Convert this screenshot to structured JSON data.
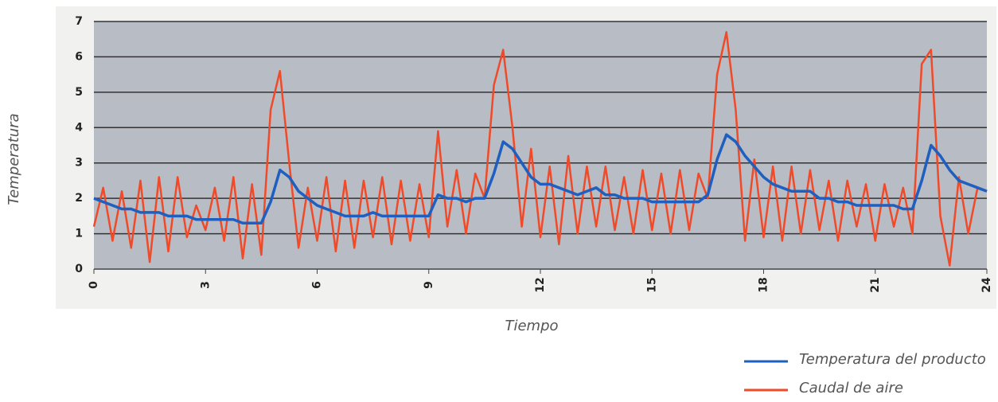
{
  "chart_data": {
    "type": "line",
    "x_label": "Tiempo",
    "y_label": "Temperatura",
    "x": [
      0,
      0.25,
      0.5,
      0.75,
      1,
      1.25,
      1.5,
      1.75,
      2,
      2.25,
      2.5,
      2.75,
      3,
      3.25,
      3.5,
      3.75,
      4,
      4.25,
      4.5,
      4.75,
      5,
      5.25,
      5.5,
      5.75,
      6,
      6.25,
      6.5,
      6.75,
      7,
      7.25,
      7.5,
      7.75,
      8,
      8.25,
      8.5,
      8.75,
      9,
      9.25,
      9.5,
      9.75,
      10,
      10.25,
      10.5,
      10.75,
      11,
      11.25,
      11.5,
      11.75,
      12,
      12.25,
      12.5,
      12.75,
      13,
      13.25,
      13.5,
      13.75,
      14,
      14.25,
      14.5,
      14.75,
      15,
      15.25,
      15.5,
      15.75,
      16,
      16.25,
      16.5,
      16.75,
      17,
      17.25,
      17.5,
      17.75,
      18,
      18.25,
      18.5,
      18.75,
      19,
      19.25,
      19.5,
      19.75,
      20,
      20.25,
      20.5,
      20.75,
      21,
      21.25,
      21.5,
      21.75,
      22,
      22.25,
      22.5,
      22.75,
      23,
      23.25,
      23.5,
      23.75,
      24
    ],
    "series": [
      {
        "name": "Caudal de aire",
        "color": "#f04a28",
        "values": [
          1.2,
          2.3,
          0.8,
          2.2,
          0.6,
          2.5,
          0.2,
          2.6,
          0.5,
          2.6,
          0.9,
          1.8,
          1.1,
          2.3,
          0.8,
          2.6,
          0.3,
          2.4,
          0.4,
          4.5,
          5.6,
          3.0,
          0.6,
          2.3,
          0.8,
          2.6,
          0.5,
          2.5,
          0.6,
          2.5,
          0.9,
          2.6,
          0.7,
          2.5,
          0.8,
          2.4,
          0.9,
          3.9,
          1.2,
          2.8,
          1.0,
          2.7,
          2.0,
          5.2,
          6.2,
          4.0,
          1.2,
          3.4,
          0.9,
          2.9,
          0.7,
          3.2,
          1.0,
          2.9,
          1.2,
          2.9,
          1.1,
          2.6,
          1.0,
          2.8,
          1.1,
          2.7,
          1.0,
          2.8,
          1.1,
          2.7,
          2.0,
          5.5,
          6.7,
          4.5,
          0.8,
          3.1,
          0.9,
          2.9,
          0.8,
          2.9,
          1.0,
          2.8,
          1.1,
          2.5,
          0.8,
          2.5,
          1.2,
          2.4,
          0.8,
          2.4,
          1.2,
          2.3,
          1.0,
          5.8,
          6.2,
          1.5,
          0.1,
          2.6,
          1.0,
          2.3,
          2.2
        ]
      },
      {
        "name": "Temperatura del producto",
        "color": "#1f5fbf",
        "values": [
          2.0,
          1.9,
          1.8,
          1.7,
          1.7,
          1.6,
          1.6,
          1.6,
          1.5,
          1.5,
          1.5,
          1.4,
          1.4,
          1.4,
          1.4,
          1.4,
          1.3,
          1.3,
          1.3,
          1.9,
          2.8,
          2.6,
          2.2,
          2.0,
          1.8,
          1.7,
          1.6,
          1.5,
          1.5,
          1.5,
          1.6,
          1.5,
          1.5,
          1.5,
          1.5,
          1.5,
          1.5,
          2.1,
          2.0,
          2.0,
          1.9,
          2.0,
          2.0,
          2.7,
          3.6,
          3.4,
          3.0,
          2.6,
          2.4,
          2.4,
          2.3,
          2.2,
          2.1,
          2.2,
          2.3,
          2.1,
          2.1,
          2.0,
          2.0,
          2.0,
          1.9,
          1.9,
          1.9,
          1.9,
          1.9,
          1.9,
          2.1,
          3.1,
          3.8,
          3.6,
          3.2,
          2.9,
          2.6,
          2.4,
          2.3,
          2.2,
          2.2,
          2.2,
          2.0,
          2.0,
          1.9,
          1.9,
          1.8,
          1.8,
          1.8,
          1.8,
          1.8,
          1.7,
          1.7,
          2.5,
          3.5,
          3.2,
          2.8,
          2.5,
          2.4,
          2.3,
          2.2
        ]
      }
    ],
    "xlim": [
      0,
      24
    ],
    "xticks": [
      0,
      3,
      6,
      9,
      12,
      15,
      18,
      21,
      24
    ],
    "ylim": [
      0,
      7
    ],
    "yticks": [
      0,
      1,
      2,
      3,
      4,
      5,
      6,
      7
    ],
    "grid": true,
    "legend": "bottom-right"
  }
}
